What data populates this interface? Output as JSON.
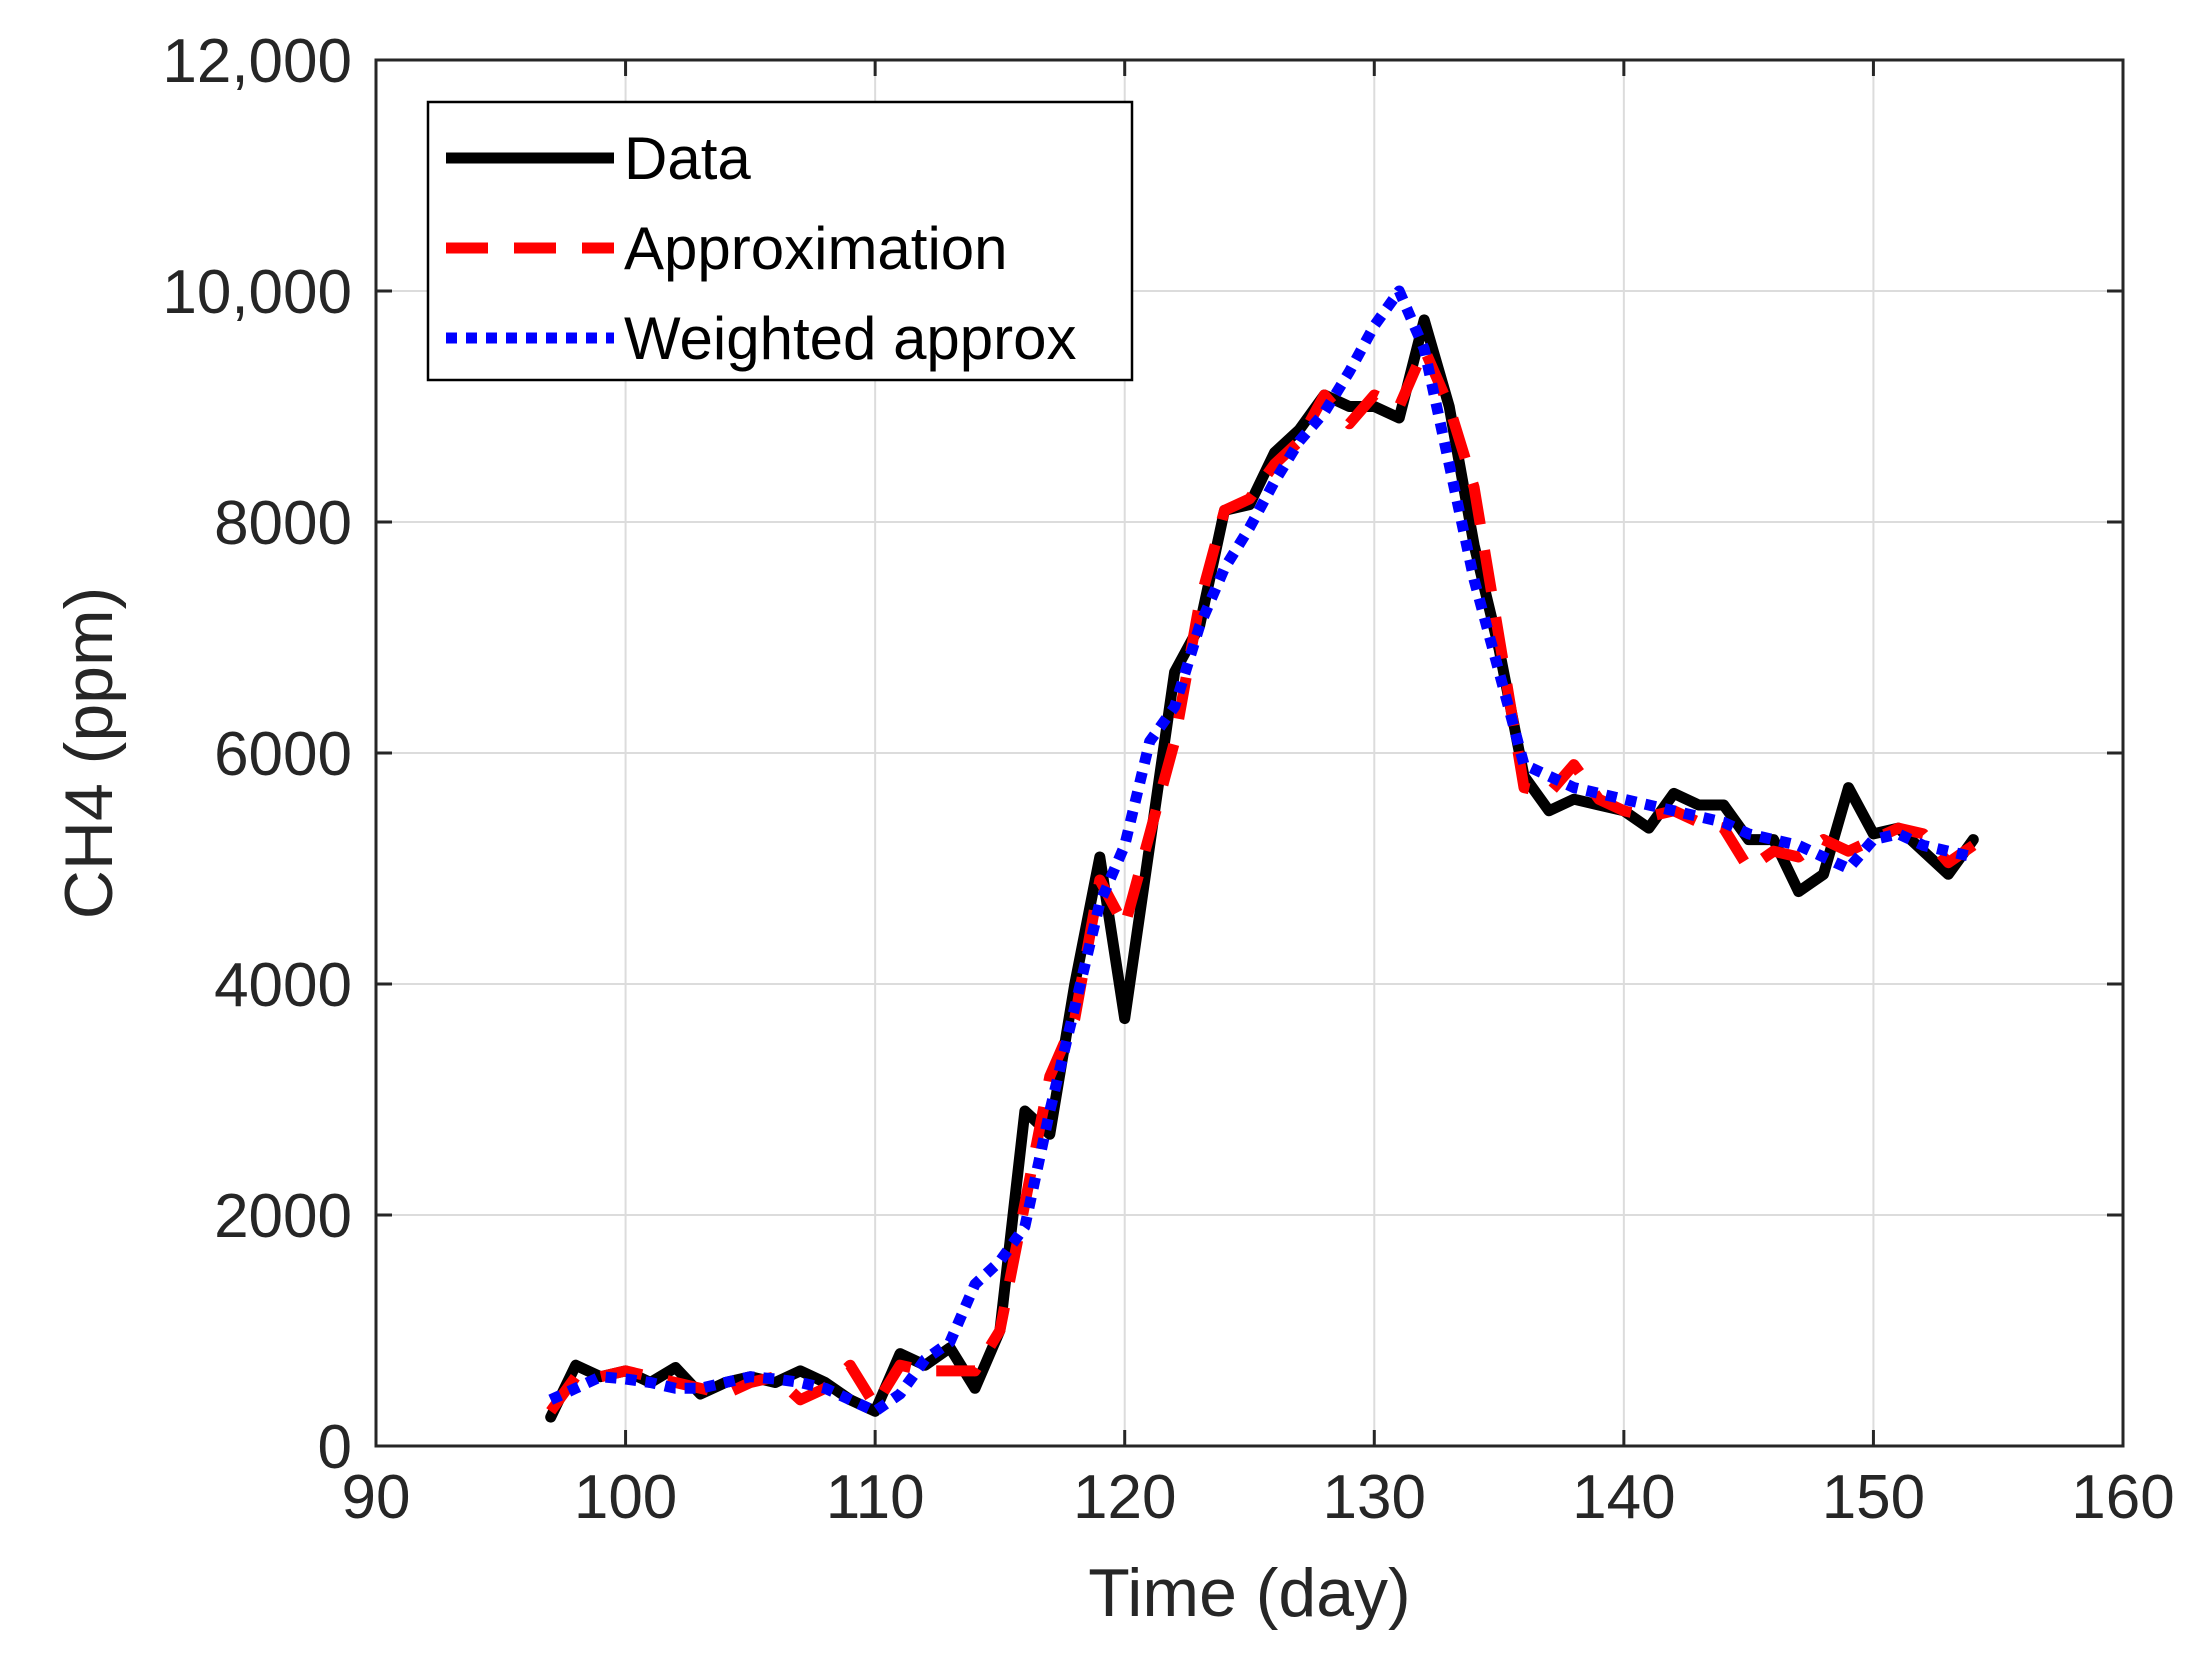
{
  "chart_data": {
    "type": "line",
    "xlabel": "Time (day)",
    "ylabel": "CH4 (ppm)",
    "xlim": [
      90,
      160
    ],
    "ylim": [
      0,
      12000
    ],
    "xticks": [
      "90",
      "100",
      "110",
      "120",
      "130",
      "140",
      "150",
      "160"
    ],
    "yticks": [
      "0",
      "2000",
      "4000",
      "6000",
      "8000",
      "10,000",
      "12,000"
    ],
    "grid": true,
    "legend_position": "top-left",
    "series": [
      {
        "name": "Data",
        "color": "#000000",
        "style": "solid",
        "x": [
          97,
          98,
          99,
          100,
          101,
          102,
          103,
          104,
          105,
          106,
          107,
          108,
          109,
          110,
          111,
          112,
          113,
          114,
          115,
          116,
          117,
          118,
          119,
          120,
          121,
          122,
          123,
          124,
          125,
          126,
          127,
          128,
          129,
          130,
          131,
          132,
          133,
          134,
          135,
          136,
          137,
          138,
          139,
          140,
          141,
          142,
          143,
          144,
          145,
          146,
          147,
          148,
          149,
          150,
          151,
          152,
          153,
          154
        ],
        "y": [
          250,
          700,
          600,
          650,
          550,
          680,
          450,
          550,
          600,
          550,
          650,
          550,
          400,
          300,
          800,
          700,
          850,
          500,
          1000,
          2900,
          2700,
          4000,
          5100,
          3700,
          5200,
          6700,
          7100,
          8100,
          8150,
          8600,
          8800,
          9100,
          9000,
          9000,
          8900,
          9750,
          9000,
          7800,
          6900,
          5800,
          5500,
          5600,
          5550,
          5500,
          5350,
          5650,
          5550,
          5550,
          5250,
          5250,
          4800,
          4950,
          5700,
          5300,
          5350,
          5150,
          4950,
          5250
        ]
      },
      {
        "name": "Approximation",
        "color": "#ff0000",
        "style": "dashed",
        "x": [
          97,
          98,
          99,
          100,
          101,
          102,
          103,
          104,
          105,
          106,
          107,
          108,
          109,
          110,
          111,
          112,
          113,
          114,
          115,
          116,
          117,
          118,
          119,
          120,
          121,
          122,
          123,
          124,
          125,
          126,
          127,
          128,
          129,
          130,
          131,
          132,
          133,
          134,
          135,
          136,
          137,
          138,
          139,
          140,
          141,
          142,
          143,
          144,
          145,
          146,
          147,
          148,
          149,
          150,
          151,
          152,
          153,
          154
        ],
        "y": [
          300,
          600,
          600,
          650,
          600,
          550,
          500,
          450,
          550,
          600,
          400,
          500,
          700,
          350,
          700,
          650,
          650,
          650,
          1000,
          2100,
          3200,
          3700,
          4900,
          4500,
          5300,
          6100,
          7300,
          8100,
          8200,
          8500,
          8700,
          9100,
          8850,
          9100,
          9000,
          9500,
          9000,
          8300,
          7000,
          5700,
          5650,
          5900,
          5600,
          5500,
          5450,
          5500,
          5400,
          5350,
          5000,
          5150,
          5100,
          5250,
          5150,
          5250,
          5350,
          5300,
          5050,
          5200
        ]
      },
      {
        "name": "Weighted approx",
        "color": "#0000ff",
        "style": "dotted",
        "x": [
          97,
          98,
          99,
          100,
          101,
          102,
          103,
          104,
          105,
          106,
          107,
          108,
          109,
          110,
          111,
          112,
          113,
          114,
          115,
          116,
          117,
          118,
          119,
          120,
          121,
          122,
          123,
          124,
          125,
          126,
          127,
          128,
          129,
          130,
          131,
          132,
          133,
          134,
          135,
          136,
          137,
          138,
          139,
          140,
          141,
          142,
          143,
          144,
          145,
          146,
          147,
          148,
          149,
          150,
          151,
          152,
          153,
          154
        ],
        "y": [
          400,
          500,
          600,
          580,
          550,
          500,
          500,
          550,
          600,
          580,
          550,
          500,
          400,
          300,
          450,
          750,
          900,
          1400,
          1600,
          1900,
          2900,
          3800,
          4700,
          5200,
          6100,
          6400,
          7100,
          7600,
          7950,
          8350,
          8700,
          8950,
          9300,
          9700,
          10000,
          9500,
          8500,
          7500,
          6700,
          5900,
          5800,
          5700,
          5650,
          5600,
          5550,
          5500,
          5450,
          5400,
          5300,
          5250,
          5200,
          5100,
          5000,
          5250,
          5300,
          5200,
          5150,
          5100
        ]
      }
    ]
  }
}
